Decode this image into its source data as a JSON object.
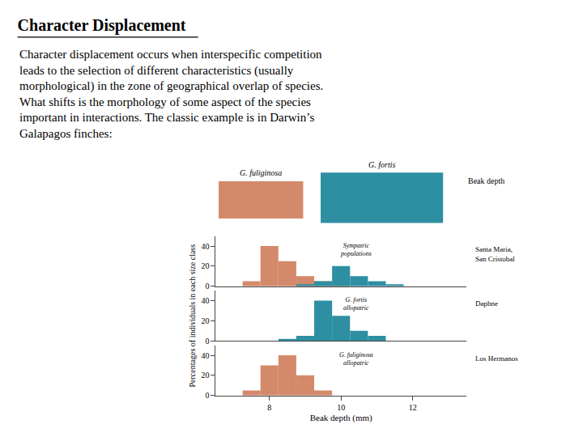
{
  "title": "Character Displacement",
  "subtitle": "Character displacement occurs when interspecific competition\nleads to the selection of different characteristics (usually\nmorphological) in the zone of geographical overlap of species.\nWhat shifts is the morphology of some aspect of the species\nimportant in interactions. The classic example is in Darwin’s\nGalapagos finches:",
  "annotations": [
    "G. fuliginosa",
    "G. fortis",
    "Beak depth"
  ],
  "chart_data": [
    {
      "type": "bar",
      "x": [
        7.0,
        7.5,
        8.0,
        8.5,
        9.0,
        9.5,
        10.0,
        10.5,
        11.0,
        11.5,
        12.0
      ],
      "series": [
        {
          "color": "#d4896a",
          "values": [
            0,
            5,
            40,
            25,
            10,
            5,
            2,
            0,
            0,
            0,
            0
          ]
        },
        {
          "color": "#2e8fa3",
          "values": [
            0,
            0,
            0,
            0,
            2,
            5,
            20,
            10,
            5,
            2,
            0
          ]
        }
      ],
      "annotations": [
        "Sympatric\npopulations",
        "Santa Maria,\nSan Cristobal"
      ],
      "xlim": [
        6.5,
        13.5
      ],
      "ylim": [
        0,
        50
      ],
      "yticks": [
        0,
        20,
        40
      ],
      "grid": false,
      "tick_labels": "y"
    },
    {
      "type": "bar",
      "x": [
        7.0,
        7.5,
        8.0,
        8.5,
        9.0,
        9.5,
        10.0,
        10.5,
        11.0,
        11.5,
        12.0
      ],
      "series": [
        {
          "color": "#2e8fa3",
          "values": [
            0,
            0,
            0,
            2,
            5,
            40,
            25,
            10,
            5,
            0,
            0
          ]
        }
      ],
      "annotations": [
        "G. fortis\nallopatric",
        "Daphne"
      ],
      "ylabel": "Percentages of individuals in each size class",
      "xlim": [
        6.5,
        13.5
      ],
      "ylim": [
        0,
        50
      ],
      "yticks": [
        0,
        20,
        40
      ],
      "grid": false,
      "tick_labels": "y"
    },
    {
      "type": "bar",
      "x": [
        7.0,
        7.5,
        8.0,
        8.5,
        9.0,
        9.5,
        10.0,
        10.5,
        11.0,
        11.5,
        12.0
      ],
      "series": [
        {
          "color": "#d4896a",
          "values": [
            0,
            5,
            30,
            40,
            20,
            5,
            0,
            0,
            0,
            0,
            0
          ]
        }
      ],
      "annotations": [
        "G. fuliginosa\nallopatric",
        "Los Hermanos"
      ],
      "xlabel": "Beak depth (mm)",
      "xlim": [
        6.5,
        13.5
      ],
      "ylim": [
        0,
        50
      ],
      "xticks": [
        8,
        10,
        12
      ],
      "yticks": [
        0,
        20,
        40
      ],
      "grid": false
    }
  ]
}
